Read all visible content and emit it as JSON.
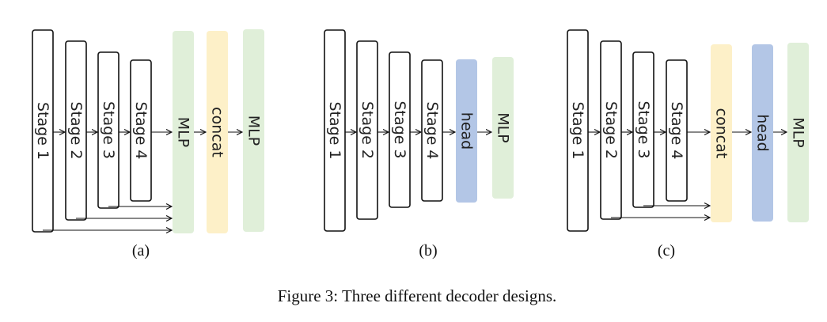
{
  "colors": {
    "green": "#e0efd9",
    "yellow": "#fdf0c8",
    "blue": "#b3c6e6",
    "stroke": "#111111"
  },
  "panels": [
    {
      "label": "(a)",
      "stages": [
        "Stage 1",
        "Stage 2",
        "Stage 3",
        "Stage 4"
      ],
      "blocks": [
        {
          "text": "MLP",
          "color": "green"
        },
        {
          "text": "concat",
          "color": "yellow"
        },
        {
          "text": "MLP",
          "color": "green"
        }
      ],
      "skip_from_stages": [
        1,
        2,
        3
      ]
    },
    {
      "label": "(b)",
      "stages": [
        "Stage 1",
        "Stage 2",
        "Stage 3",
        "Stage 4"
      ],
      "blocks": [
        {
          "text": "head",
          "color": "blue"
        },
        {
          "text": "MLP",
          "color": "green"
        }
      ],
      "skip_from_stages": []
    },
    {
      "label": "(c)",
      "stages": [
        "Stage 1",
        "Stage 2",
        "Stage 3",
        "Stage 4"
      ],
      "blocks": [
        {
          "text": "concat",
          "color": "yellow"
        },
        {
          "text": "head",
          "color": "blue"
        },
        {
          "text": "MLP",
          "color": "green"
        }
      ],
      "skip_from_stages": [
        2,
        3
      ]
    }
  ],
  "caption": "Figure 3:  Three different decoder designs."
}
